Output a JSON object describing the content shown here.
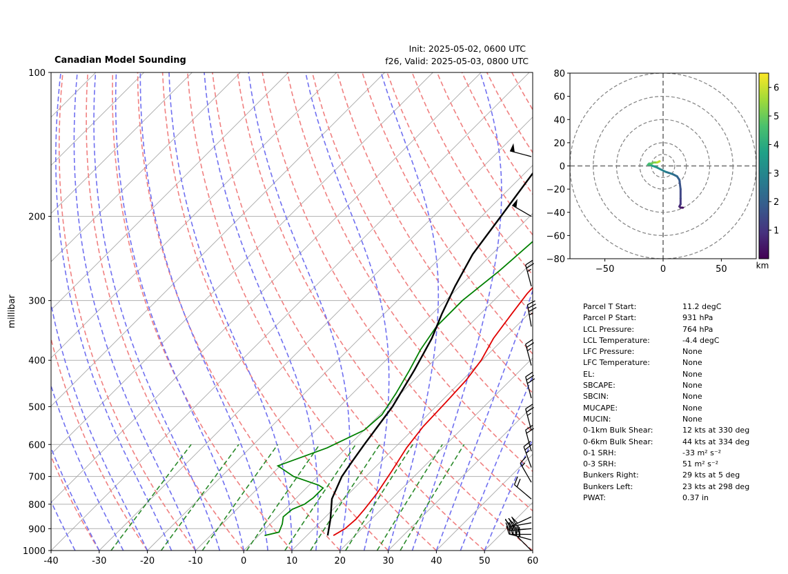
{
  "header": {
    "title": "Canadian Model Sounding",
    "init": "Init: 2025-05-02, 0600 UTC",
    "valid": "f26, Valid: 2025-05-03, 0800 UTC"
  },
  "chart_data": [
    {
      "type": "line",
      "subtype": "skew-t log-p",
      "ylabel": "millibar",
      "xlim": [
        -40,
        60
      ],
      "ylim": [
        1000,
        100
      ],
      "y_scale": "log",
      "x_ticks": [
        "-40",
        "-30",
        "-20",
        "-10",
        "0",
        "10",
        "20",
        "30",
        "40",
        "50",
        "60"
      ],
      "y_ticks": [
        "100",
        "200",
        "300",
        "400",
        "500",
        "600",
        "700",
        "800",
        "900",
        "1000"
      ],
      "grid": true,
      "series": [
        {
          "color": "#e00000",
          "points": [
            [
              15.5,
              930
            ],
            [
              16.5,
              900
            ],
            [
              16.8,
              860
            ],
            [
              16.5,
              820
            ],
            [
              15.8,
              760
            ],
            [
              14.2,
              680
            ],
            [
              12.5,
              610
            ],
            [
              11.5,
              550
            ],
            [
              11.2,
              490
            ],
            [
              10.8,
              440
            ],
            [
              9.8,
              400
            ],
            [
              7.8,
              360
            ],
            [
              6.5,
              320
            ],
            [
              5.5,
              290
            ],
            [
              5.2,
              260
            ],
            [
              8,
              235
            ],
            [
              18,
              190
            ],
            [
              30,
              145
            ],
            [
              40,
              115
            ],
            [
              43,
              100
            ]
          ]
        },
        {
          "color": "#008000",
          "points": [
            [
              1.2,
              930
            ],
            [
              3.5,
              915
            ],
            [
              2.5,
              880
            ],
            [
              1.2,
              850
            ],
            [
              1.5,
              820
            ],
            [
              3,
              800
            ],
            [
              3.5,
              775
            ],
            [
              3.5,
              740
            ],
            [
              2,
              730
            ],
            [
              -5,
              700
            ],
            [
              -10.5,
              665
            ],
            [
              -4,
              610
            ],
            [
              0,
              560
            ],
            [
              0.5,
              520
            ],
            [
              -1,
              470
            ],
            [
              -3,
              420
            ],
            [
              -5,
              380
            ],
            [
              -6.5,
              340
            ],
            [
              -6.5,
              300
            ],
            [
              -5,
              260
            ],
            [
              -4,
              220
            ],
            [
              -2.5,
              190
            ],
            [
              -2.5,
              150
            ],
            [
              -10,
              130
            ],
            [
              -15,
              110
            ],
            [
              -10,
              100
            ]
          ]
        },
        {
          "color": "#000000",
          "points": [
            [
              14.3,
              930
            ],
            [
              11.5,
              860
            ],
            [
              7.6,
              780
            ],
            [
              5,
              700
            ],
            [
              4,
              650
            ],
            [
              3,
              600
            ],
            [
              1,
              500
            ],
            [
              -2,
              420
            ],
            [
              -5,
              360
            ],
            [
              -8,
              320
            ],
            [
              -11,
              280
            ],
            [
              -14,
              240
            ],
            [
              -16,
              200
            ],
            [
              -18.5,
              160
            ],
            [
              -19.5,
              130
            ],
            [
              -19,
              100
            ]
          ]
        }
      ],
      "wind_barbs": [
        {
          "p": 1000,
          "speed_kt": 15,
          "dir_deg": 315
        },
        {
          "p": 950,
          "speed_kt": 40,
          "dir_deg": 285
        },
        {
          "p": 925,
          "speed_kt": 40,
          "dir_deg": 270
        },
        {
          "p": 900,
          "speed_kt": 35,
          "dir_deg": 265
        },
        {
          "p": 875,
          "speed_kt": 30,
          "dir_deg": 260
        },
        {
          "p": 850,
          "speed_kt": 30,
          "dir_deg": 245
        },
        {
          "p": 780,
          "speed_kt": 20,
          "dir_deg": 310
        },
        {
          "p": 720,
          "speed_kt": 15,
          "dir_deg": 330
        },
        {
          "p": 670,
          "speed_kt": 25,
          "dir_deg": 340
        },
        {
          "p": 620,
          "speed_kt": 20,
          "dir_deg": 345
        },
        {
          "p": 560,
          "speed_kt": 25,
          "dir_deg": 345
        },
        {
          "p": 480,
          "speed_kt": 30,
          "dir_deg": 345
        },
        {
          "p": 410,
          "speed_kt": 25,
          "dir_deg": 345
        },
        {
          "p": 340,
          "speed_kt": 35,
          "dir_deg": 350
        },
        {
          "p": 280,
          "speed_kt": 25,
          "dir_deg": 345
        },
        {
          "p": 200,
          "speed_kt": 50,
          "dir_deg": 300
        },
        {
          "p": 150,
          "speed_kt": 50,
          "dir_deg": 285
        }
      ]
    },
    {
      "type": "line",
      "subtype": "hodograph",
      "xlim": [
        -80,
        80
      ],
      "ylim": [
        -80,
        80
      ],
      "x_ticks": [
        "−50",
        "0",
        "50"
      ],
      "y_ticks": [
        "80",
        "60",
        "40",
        "20",
        "0",
        "−20",
        "−40",
        "−60",
        "−80"
      ],
      "rings": [
        10,
        20,
        40,
        60,
        80
      ],
      "colorbar": {
        "label": "km",
        "ticks": [
          "1",
          "2",
          "3",
          "4",
          "5",
          "6"
        ],
        "range": [
          0,
          6.5
        ],
        "colors": [
          "#440154",
          "#46327e",
          "#365c8d",
          "#277f8e",
          "#1fa187",
          "#4ac16d",
          "#a0da39",
          "#fde725"
        ]
      },
      "points": [
        [
          17,
          -36,
          0.1
        ],
        [
          15,
          -36,
          0.3
        ],
        [
          14,
          -35,
          0.6
        ],
        [
          15,
          -33,
          0.9
        ],
        [
          15,
          -28,
          1.2
        ],
        [
          15,
          -20,
          1.5
        ],
        [
          14,
          -12,
          1.8
        ],
        [
          12,
          -9,
          2.1
        ],
        [
          8,
          -7,
          2.4
        ],
        [
          2,
          -5,
          2.7
        ],
        [
          -2,
          -3,
          3.0
        ],
        [
          -6,
          -1,
          3.3
        ],
        [
          -9,
          0,
          3.6
        ],
        [
          -11,
          1,
          3.9
        ],
        [
          -13,
          1,
          4.2
        ],
        [
          -12,
          2,
          4.5
        ],
        [
          -10,
          2,
          4.8
        ],
        [
          -8,
          3,
          5.1
        ],
        [
          -5,
          3,
          5.4
        ],
        [
          -3,
          4,
          5.7
        ],
        [
          -5,
          3,
          6.0
        ]
      ]
    }
  ],
  "params": [
    {
      "label": "Parcel T Start:",
      "value": "11.2 degC"
    },
    {
      "label": "Parcel P Start:",
      "value": "931 hPa"
    },
    {
      "label": "LCL Pressure:",
      "value": "764 hPa"
    },
    {
      "label": "LCL Temperature:",
      "value": "-4.4 degC"
    },
    {
      "label": "LFC Pressure:",
      "value": "None"
    },
    {
      "label": "LFC Temperature:",
      "value": "None"
    },
    {
      "label": "EL:",
      "value": "None"
    },
    {
      "label": "SBCAPE:",
      "value": "None"
    },
    {
      "label": "SBCIN:",
      "value": "None"
    },
    {
      "label": "MUCAPE:",
      "value": "None"
    },
    {
      "label": "MUCIN:",
      "value": "None"
    },
    {
      "label": "0-1km Bulk Shear:",
      "value": "12 kts at 330 deg"
    },
    {
      "label": "0-6km Bulk Shear:",
      "value": "44 kts at 334 deg"
    },
    {
      "label": "0-1 SRH:",
      "value": "-33 m² s⁻²"
    },
    {
      "label": "0-3 SRH:",
      "value": "51 m² s⁻²"
    },
    {
      "label": "Bunkers Right:",
      "value": "29 kts at 5 deg"
    },
    {
      "label": "Bunkers Left:",
      "value": "23 kts at 298 deg"
    },
    {
      "label": "PWAT:",
      "value": "0.37 in"
    }
  ]
}
